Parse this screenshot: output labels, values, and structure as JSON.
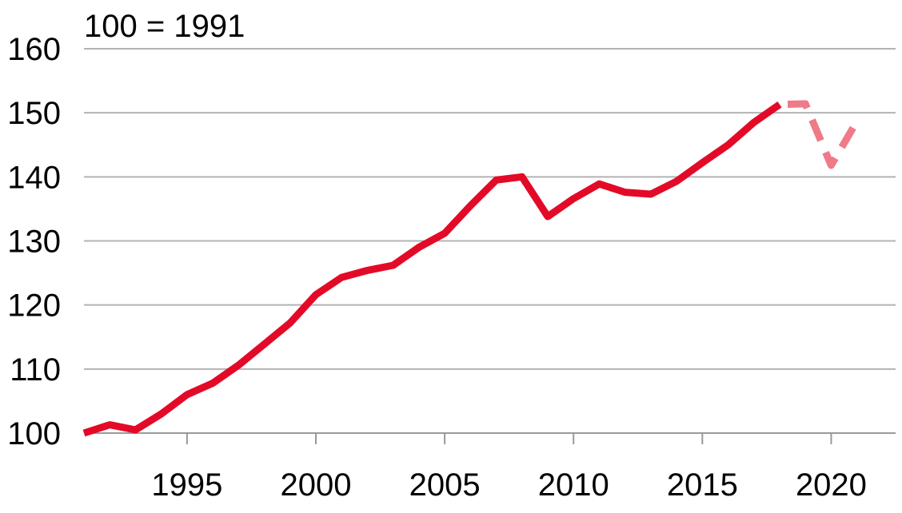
{
  "chart_data": {
    "type": "line",
    "title": "",
    "annotation": "100 = 1991",
    "xlabel": "",
    "ylabel": "",
    "xlim": [
      1991,
      2022.5
    ],
    "ylim": [
      100,
      160
    ],
    "yticks": [
      100,
      110,
      120,
      130,
      140,
      150,
      160
    ],
    "xticks": [
      1995,
      2000,
      2005,
      2010,
      2015,
      2020
    ],
    "grid": true,
    "colors": {
      "actual": "#e30a28",
      "forecast": "#ef7a88"
    },
    "series": [
      {
        "style": "solid",
        "x": [
          1991,
          1992,
          1993,
          1994,
          1995,
          1996,
          1997,
          1998,
          1999,
          2000,
          2001,
          2002,
          2003,
          2004,
          2005,
          2006,
          2007,
          2008,
          2009,
          2010,
          2011,
          2012,
          2013,
          2014,
          2015,
          2016,
          2017,
          2018
        ],
        "y": [
          100,
          101.3,
          100.5,
          103,
          106,
          107.8,
          110.6,
          113.9,
          117.2,
          121.6,
          124.3,
          125.4,
          126.2,
          129,
          131.2,
          135.5,
          139.5,
          140,
          133.8,
          136.6,
          138.9,
          137.6,
          137.3,
          139.3,
          142.2,
          145,
          148.5,
          151.3
        ]
      },
      {
        "style": "dashed",
        "x": [
          2018,
          2019,
          2020,
          2021
        ],
        "y": [
          151.3,
          151.4,
          141.8,
          148.7
        ]
      }
    ]
  }
}
